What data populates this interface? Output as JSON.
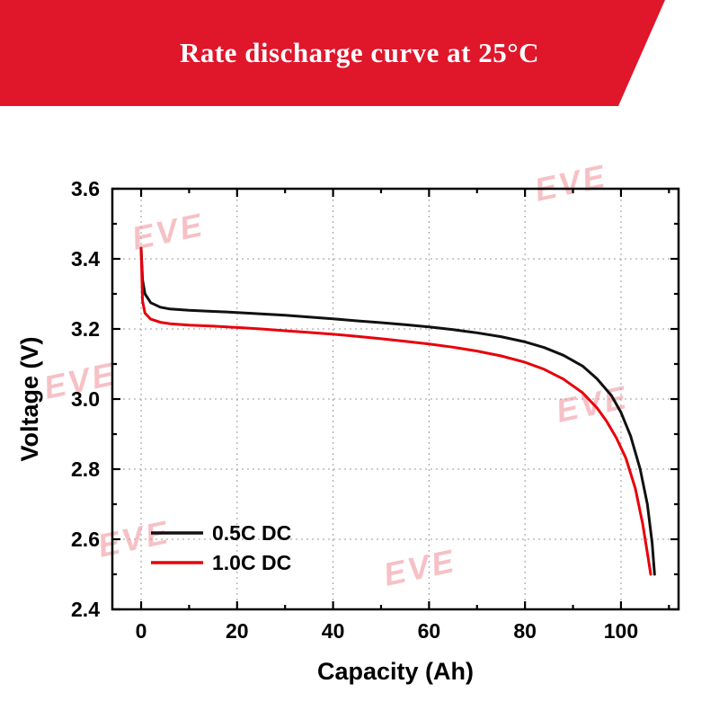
{
  "banner": {
    "title": "Rate discharge curve at 25°C",
    "color": "#e0162b"
  },
  "watermark": {
    "text": "EVE",
    "color": "#ef8f98"
  },
  "chart_data": {
    "type": "line",
    "title": "Rate discharge curve at 25°C",
    "xlabel": "Capacity (Ah)",
    "ylabel": "Voltage (V)",
    "xlim": [
      -6,
      112
    ],
    "ylim": [
      2.4,
      3.6
    ],
    "x_major_ticks": [
      0,
      20,
      40,
      60,
      80,
      100
    ],
    "y_major_ticks": [
      2.4,
      2.6,
      2.8,
      3.0,
      3.2,
      3.4,
      3.6
    ],
    "x_minor_step": 10,
    "y_minor_step": 0.1,
    "grid": "dotted",
    "grid_color": "#9a9a9a",
    "legend_position": "lower-left",
    "series": [
      {
        "name": "0.5C DC",
        "color": "#111111",
        "points": [
          [
            0,
            3.43
          ],
          [
            0.3,
            3.34
          ],
          [
            0.8,
            3.3
          ],
          [
            2,
            3.275
          ],
          [
            4,
            3.262
          ],
          [
            6,
            3.257
          ],
          [
            10,
            3.253
          ],
          [
            15,
            3.25
          ],
          [
            20,
            3.247
          ],
          [
            25,
            3.243
          ],
          [
            30,
            3.239
          ],
          [
            35,
            3.234
          ],
          [
            40,
            3.229
          ],
          [
            45,
            3.223
          ],
          [
            50,
            3.218
          ],
          [
            55,
            3.212
          ],
          [
            60,
            3.206
          ],
          [
            65,
            3.198
          ],
          [
            70,
            3.189
          ],
          [
            75,
            3.178
          ],
          [
            80,
            3.163
          ],
          [
            84,
            3.147
          ],
          [
            88,
            3.125
          ],
          [
            92,
            3.094
          ],
          [
            95,
            3.058
          ],
          [
            98,
            3.01
          ],
          [
            100,
            2.962
          ],
          [
            102,
            2.895
          ],
          [
            104,
            2.8
          ],
          [
            105.5,
            2.7
          ],
          [
            106.5,
            2.59
          ],
          [
            107,
            2.5
          ]
        ]
      },
      {
        "name": "1.0C DC",
        "color": "#e8000b",
        "points": [
          [
            0,
            3.43
          ],
          [
            0.3,
            3.28
          ],
          [
            0.8,
            3.245
          ],
          [
            2,
            3.228
          ],
          [
            4,
            3.219
          ],
          [
            6,
            3.215
          ],
          [
            10,
            3.211
          ],
          [
            15,
            3.208
          ],
          [
            20,
            3.204
          ],
          [
            25,
            3.2
          ],
          [
            30,
            3.195
          ],
          [
            35,
            3.19
          ],
          [
            40,
            3.185
          ],
          [
            45,
            3.179
          ],
          [
            50,
            3.172
          ],
          [
            55,
            3.165
          ],
          [
            60,
            3.157
          ],
          [
            65,
            3.148
          ],
          [
            70,
            3.137
          ],
          [
            75,
            3.123
          ],
          [
            80,
            3.105
          ],
          [
            84,
            3.085
          ],
          [
            88,
            3.057
          ],
          [
            92,
            3.018
          ],
          [
            95,
            2.975
          ],
          [
            97,
            2.937
          ],
          [
            99,
            2.89
          ],
          [
            101,
            2.832
          ],
          [
            103,
            2.745
          ],
          [
            104.5,
            2.645
          ],
          [
            105.8,
            2.535
          ],
          [
            106.2,
            2.5
          ]
        ]
      }
    ]
  }
}
